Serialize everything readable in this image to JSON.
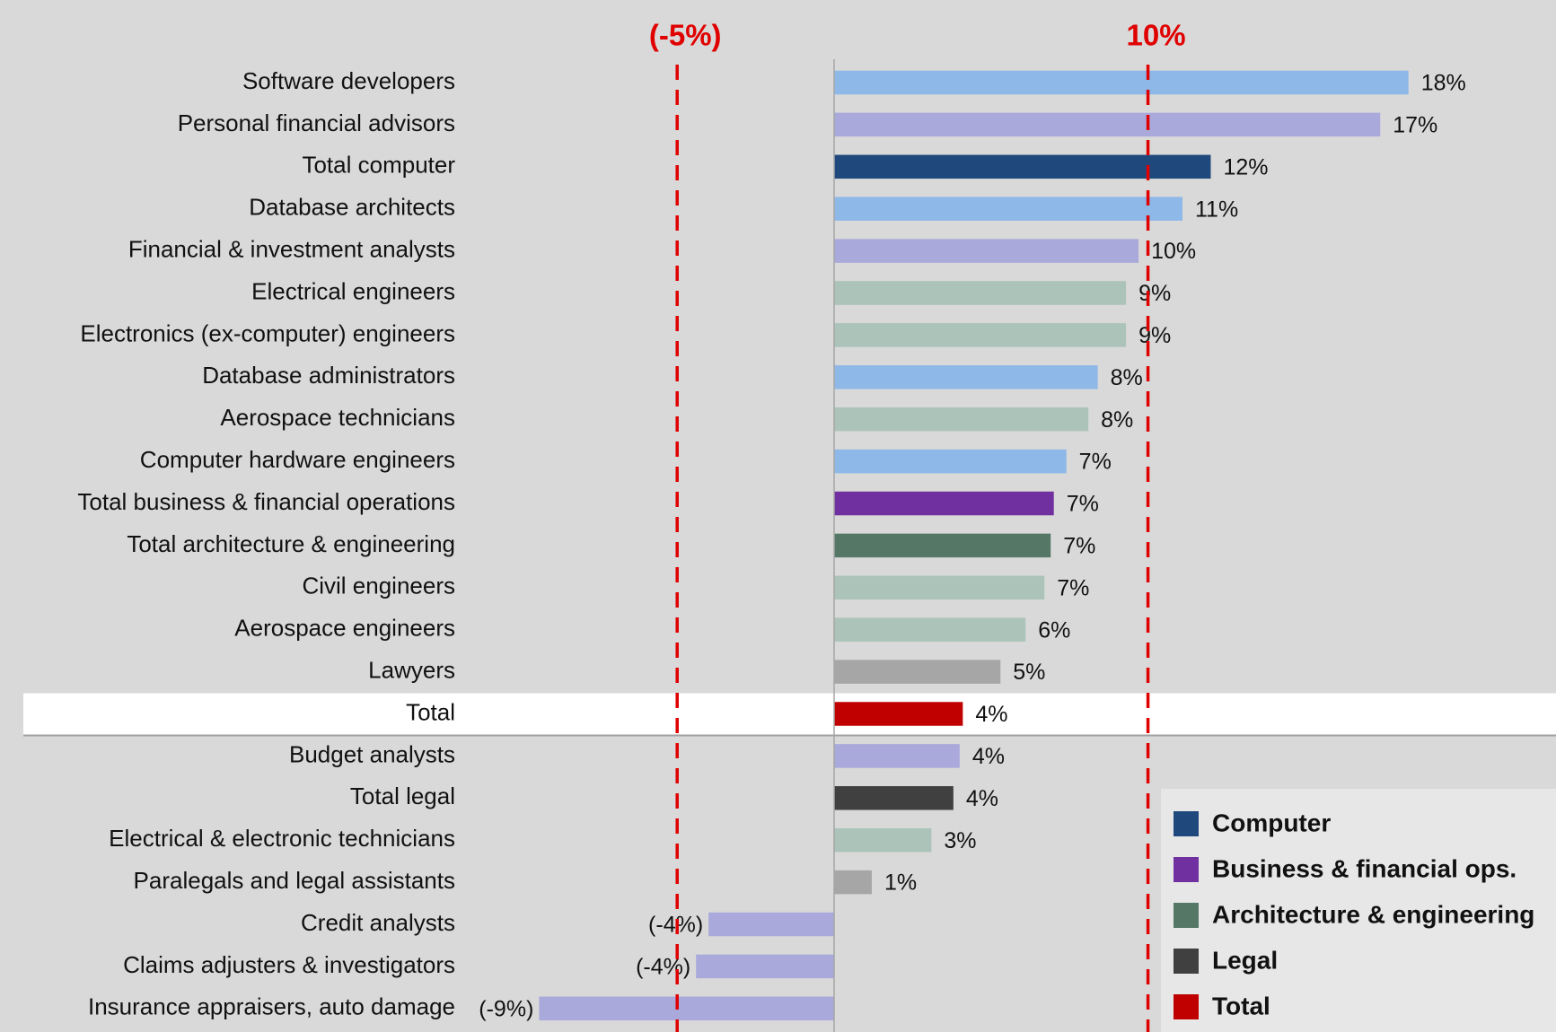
{
  "chart_data": {
    "type": "hbar",
    "categories": [
      "Software developers",
      "Personal financial advisors",
      "Total computer",
      "Database architects",
      "Financial & investment analysts",
      "Electrical engineers",
      "Electronics (ex-computer) engineers",
      "Database administrators",
      "Aerospace technicians",
      "Computer hardware engineers",
      "Total business & financial operations",
      "Total architecture & engineering",
      "Civil engineers",
      "Aerospace engineers",
      "Lawyers",
      "Total",
      "Budget analysts",
      "Total legal",
      "Electrical & electronic technicians",
      "Paralegals and legal assistants",
      "Credit analysts",
      "Claims adjusters & investigators",
      "Insurance appraisers, auto damage"
    ],
    "values": [
      18.3,
      17.4,
      12.0,
      11.1,
      9.7,
      9.3,
      9.3,
      8.4,
      8.1,
      7.4,
      7.0,
      6.9,
      6.7,
      6.1,
      5.3,
      4.1,
      4.0,
      3.8,
      3.1,
      1.2,
      -4.0,
      -4.4,
      -9.4
    ],
    "value_labels": [
      "18%",
      "17%",
      "12%",
      "11%",
      "10%",
      "9%",
      "9%",
      "8%",
      "8%",
      "7%",
      "7%",
      "7%",
      "7%",
      "6%",
      "5%",
      "4%",
      "4%",
      "4%",
      "3%",
      "1%",
      "(-4%)",
      "(-4%)",
      "(-9%)"
    ],
    "colors": [
      "#8db8e8",
      "#aaa9dc",
      "#1f497d",
      "#8db8e8",
      "#aaa9dc",
      "#abc3b8",
      "#abc3b8",
      "#8db8e8",
      "#abc3b8",
      "#8db8e8",
      "#7030a0",
      "#547766",
      "#abc3b8",
      "#abc3b8",
      "#a6a6a6",
      "#c00000",
      "#aaa9dc",
      "#404040",
      "#abc3b8",
      "#a6a6a6",
      "#aaa9dc",
      "#aaa9dc",
      "#aaa9dc"
    ],
    "xlim": [
      -11.7,
      23
    ],
    "reference_lines": [
      {
        "value": -5,
        "label": "(-5%)"
      },
      {
        "value": 10,
        "label": "10%"
      }
    ],
    "reference_color": "#e00000",
    "legend": [
      {
        "name": "Computer",
        "color": "#1f497d"
      },
      {
        "name": "Business & financial ops.",
        "color": "#7030a0"
      },
      {
        "name": "Architecture & engineering",
        "color": "#547766"
      },
      {
        "name": "Legal",
        "color": "#404040"
      },
      {
        "name": "Total",
        "color": "#c00000"
      }
    ],
    "legend_position": "lower right"
  }
}
